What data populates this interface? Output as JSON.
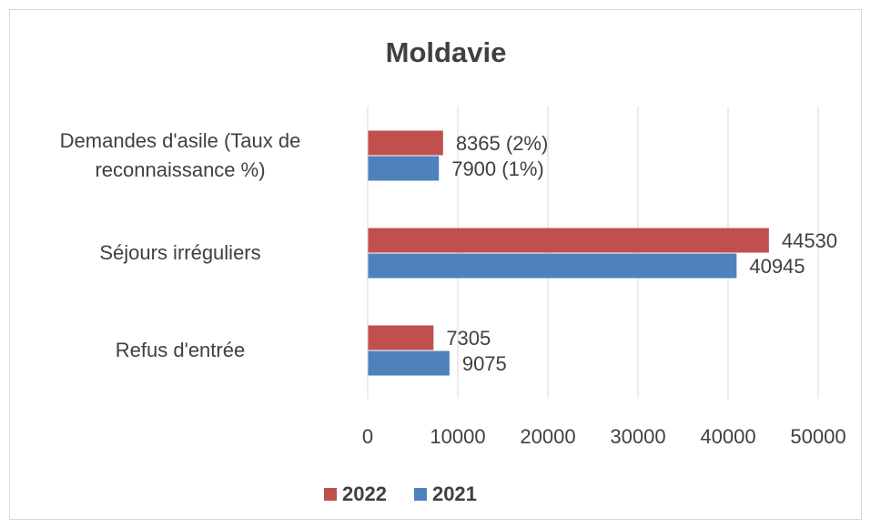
{
  "chart_data": {
    "type": "hbar",
    "title": "Moldavie",
    "categories": [
      "Demandes d'asile (Taux de reconnaissance %)",
      "Séjours irréguliers",
      "Refus d'entrée"
    ],
    "series": [
      {
        "name": "2022",
        "color": "#c0504d",
        "values": [
          8365,
          44530,
          7305
        ],
        "value_labels": [
          "8365 (2%)",
          "44530",
          "7305"
        ]
      },
      {
        "name": "2021",
        "color": "#4f81bd",
        "values": [
          7900,
          40945,
          9075
        ],
        "value_labels": [
          "7900 (1%)",
          "40945",
          "9075"
        ]
      }
    ],
    "xlim": [
      0,
      50000
    ],
    "xticks": [
      0,
      10000,
      20000,
      30000,
      40000,
      50000
    ],
    "grid": true,
    "legend": "bottom"
  }
}
